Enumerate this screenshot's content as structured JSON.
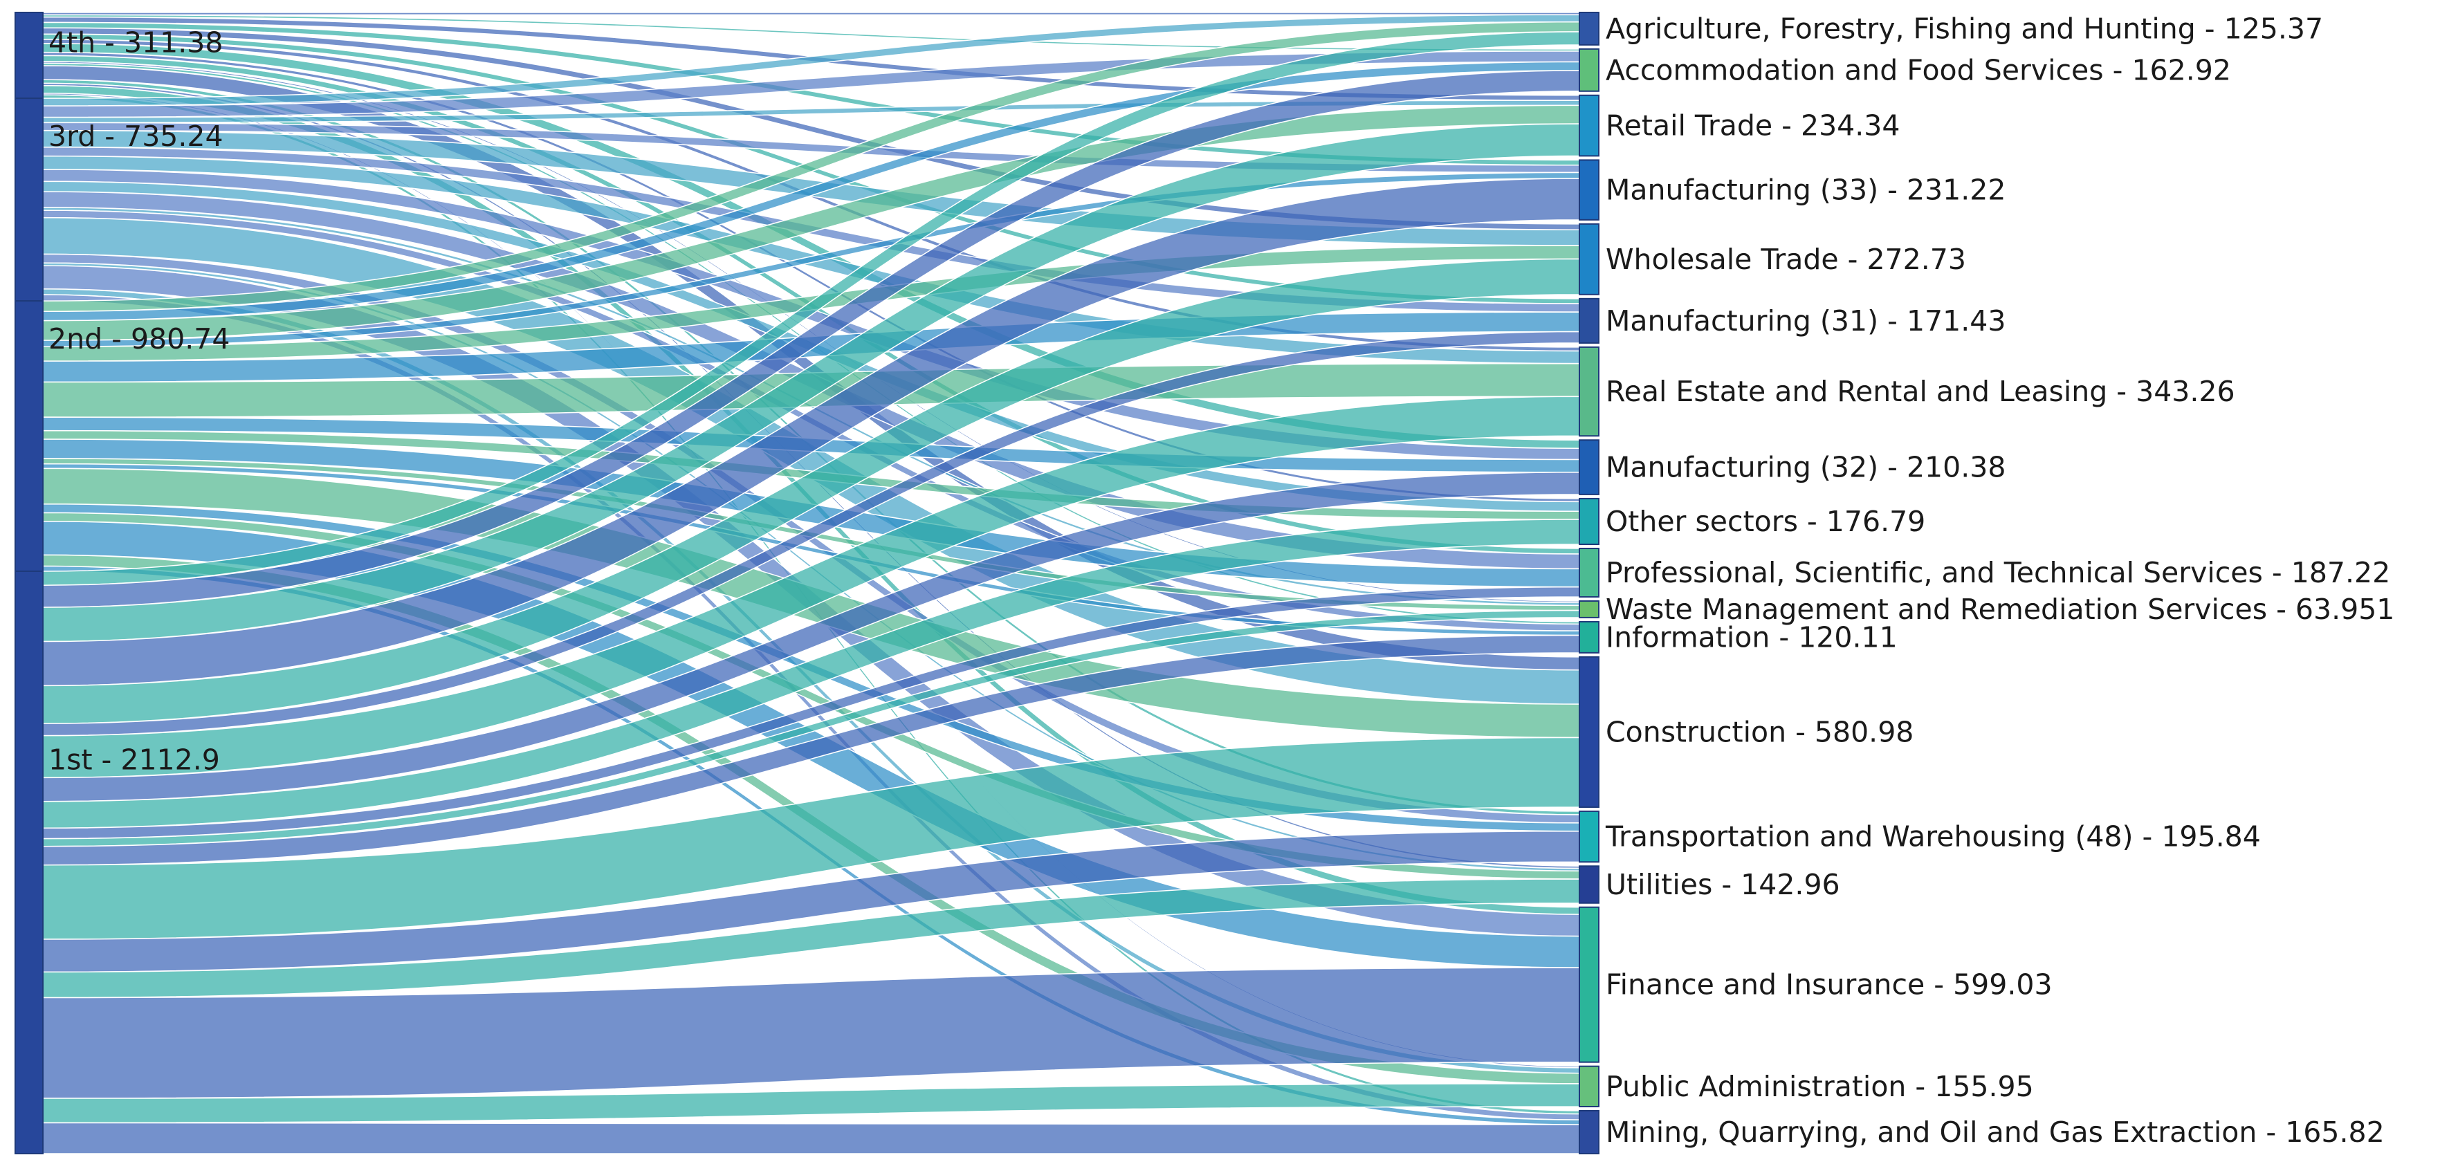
{
  "chart_data": {
    "type": "sankey",
    "title": "",
    "sources": [
      {
        "name": "4th",
        "value": 311.38,
        "label": "4th - 311.38"
      },
      {
        "name": "3rd",
        "value": 735.24,
        "label": "3rd - 735.24"
      },
      {
        "name": "2nd",
        "value": 980.74,
        "label": "2nd - 980.74"
      },
      {
        "name": "1st",
        "value": 2112.9,
        "label": "1st - 2112.9"
      }
    ],
    "targets": [
      {
        "name": "Agriculture, Forestry, Fishing and Hunting",
        "value": 125.37,
        "label": "Agriculture, Forestry, Fishing and Hunting - 125.37",
        "color": "#2f56a6"
      },
      {
        "name": "Accommodation and Food Services",
        "value": 162.92,
        "label": "Accommodation and Food Services - 162.92",
        "color": "#5fbf7a"
      },
      {
        "name": "Retail Trade",
        "value": 234.34,
        "label": "Retail Trade - 234.34",
        "color": "#1f93c9"
      },
      {
        "name": "Manufacturing (33)",
        "value": 231.22,
        "label": "Manufacturing (33) - 231.22",
        "color": "#1d6dbf"
      },
      {
        "name": "Wholesale Trade",
        "value": 272.73,
        "label": "Wholesale Trade - 272.73",
        "color": "#1e85c8"
      },
      {
        "name": "Manufacturing (31)",
        "value": 171.43,
        "label": "Manufacturing (31) - 171.43",
        "color": "#2a4f9e"
      },
      {
        "name": "Real Estate and Rental and Leasing",
        "value": 343.26,
        "label": "Real Estate and Rental and Leasing - 343.26",
        "color": "#59b98a"
      },
      {
        "name": "Manufacturing (32)",
        "value": 210.38,
        "label": "Manufacturing (32) - 210.38",
        "color": "#1f5fb4"
      },
      {
        "name": "Other sectors",
        "value": 176.79,
        "label": "Other sectors - 176.79",
        "color": "#1fa8b0"
      },
      {
        "name": "Professional, Scientific, and Technical Services",
        "value": 187.22,
        "label": "Professional, Scientific, and Technical Services - 187.22",
        "color": "#4cbb92"
      },
      {
        "name": "Waste Management and Remediation Services",
        "value": 63.951,
        "label": "Waste Management and Remediation Services - 63.951",
        "color": "#6abf6c"
      },
      {
        "name": "Information",
        "value": 120.11,
        "label": "Information - 120.11",
        "color": "#22b09a"
      },
      {
        "name": "Construction",
        "value": 580.98,
        "label": "Construction - 580.98",
        "color": "#2647a0"
      },
      {
        "name": "Transportation and Warehousing (48)",
        "value": 195.84,
        "label": "Transportation and Warehousing (48) - 195.84",
        "color": "#1ab0b5"
      },
      {
        "name": "Utilities",
        "value": 142.96,
        "label": "Utilities - 142.96",
        "color": "#253f94"
      },
      {
        "name": "Finance and Insurance",
        "value": 599.03,
        "label": "Finance and Insurance - 599.03",
        "color": "#2bb59a"
      },
      {
        "name": "Public Administration",
        "value": 155.95,
        "label": "Public Administration - 155.95",
        "color": "#66c07c"
      },
      {
        "name": "Mining, Quarrying, and Oil and Gas Extraction",
        "value": 165.82,
        "label": "Mining, Quarrying, and Oil and Gas Extraction - 165.82",
        "color": "#2c4b9e"
      }
    ],
    "source_color": "#27479b",
    "node_border": "#1e3a7a",
    "link_colors": [
      "#3f66b8",
      "#4aa6c9",
      "#55b891",
      "#35b0a8",
      "#5a7fc7",
      "#2f8fc7"
    ]
  }
}
